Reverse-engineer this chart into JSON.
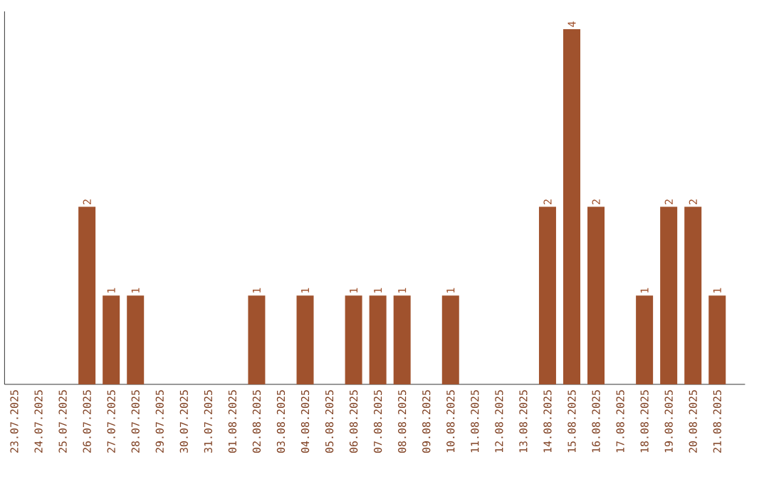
{
  "chart_data": {
    "type": "bar",
    "categories": [
      "23.07.2025",
      "24.07.2025",
      "25.07.2025",
      "26.07.2025",
      "27.07.2025",
      "28.07.2025",
      "29.07.2025",
      "30.07.2025",
      "31.07.2025",
      "01.08.2025",
      "02.08.2025",
      "03.08.2025",
      "04.08.2025",
      "05.08.2025",
      "06.08.2025",
      "07.08.2025",
      "08.08.2025",
      "09.08.2025",
      "10.08.2025",
      "11.08.2025",
      "12.08.2025",
      "13.08.2025",
      "14.08.2025",
      "15.08.2025",
      "16.08.2025",
      "17.08.2025",
      "18.08.2025",
      "19.08.2025",
      "20.08.2025",
      "21.08.2025"
    ],
    "values": [
      0,
      0,
      0,
      2,
      1,
      1,
      0,
      0,
      0,
      0,
      1,
      0,
      1,
      0,
      1,
      1,
      1,
      0,
      1,
      0,
      0,
      0,
      2,
      4,
      2,
      0,
      1,
      2,
      2,
      1
    ],
    "value_labels": [
      null,
      null,
      null,
      "2",
      "1",
      "1",
      null,
      null,
      null,
      null,
      "1",
      null,
      "1",
      null,
      "1",
      "1",
      "1",
      null,
      "1",
      null,
      null,
      null,
      "2",
      "4",
      "2",
      null,
      "1",
      "2",
      "2",
      "1"
    ],
    "color": "#a0522d",
    "ylim": [
      0,
      4.2
    ],
    "tick_labels": "x",
    "grid": false
  }
}
